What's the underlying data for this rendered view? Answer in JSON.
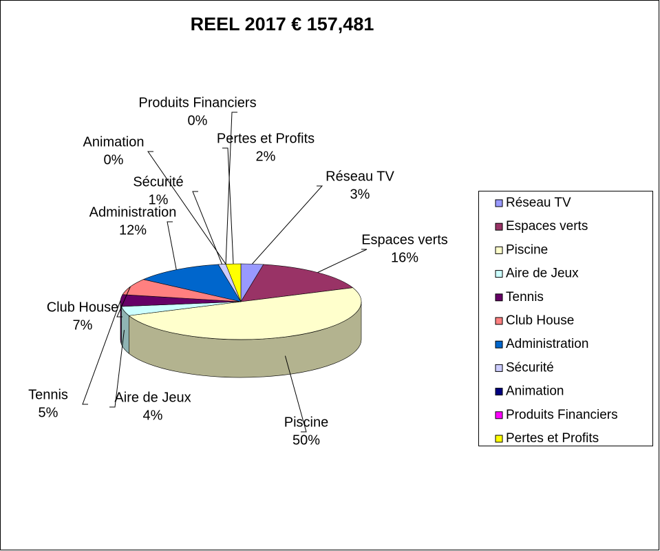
{
  "chart_data": {
    "type": "pie3d",
    "title": "REEL 2017 € 157,481",
    "categories": [
      "Réseau TV",
      "Espaces verts",
      "Piscine",
      "Aire de Jeux",
      "Tennis",
      "Club House",
      "Administration",
      "Sécurité",
      "Animation",
      "Produits Financiers",
      "Pertes et Profits"
    ],
    "values": [
      3,
      16,
      50,
      4,
      5,
      7,
      12,
      1,
      0,
      0,
      2
    ],
    "value_labels": [
      "3%",
      "16%",
      "50%",
      "4%",
      "5%",
      "7%",
      "12%",
      "1%",
      "0%",
      "0%",
      "2%"
    ],
    "colors": [
      "#9999ff",
      "#993366",
      "#ffffcc",
      "#ccffff",
      "#660066",
      "#ff8080",
      "#0066cc",
      "#ccccff",
      "#000080",
      "#ff00ff",
      "#ffff00"
    ],
    "legend": "right"
  }
}
